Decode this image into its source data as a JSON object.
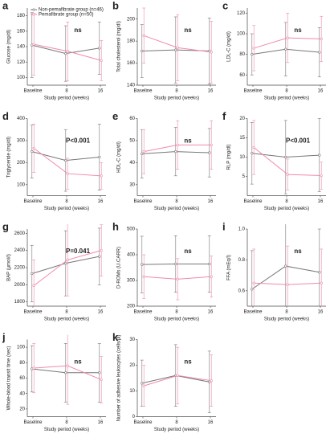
{
  "chart_data": [
    {
      "type": "line",
      "label": "a",
      "ylabel": "Glucose (mg/dl)",
      "xlabel": "Study period (weeks)",
      "categories": [
        "Baseline",
        "8",
        "16"
      ],
      "series": [
        {
          "name": "Non-pemafibrate group (n=46)",
          "color": "#777777",
          "values": [
            142,
            131,
            138
          ],
          "errors": [
            42,
            36,
            34
          ]
        },
        {
          "name": "Pemafibrate group (n=50)",
          "color": "#f08aa8",
          "values": [
            143,
            134,
            122
          ],
          "errors": [
            40,
            38,
            26
          ]
        }
      ],
      "ylim": [
        90,
        190
      ],
      "yticks": [
        100,
        120,
        140,
        160,
        180
      ],
      "annotation": "ns",
      "legend": "upper-left"
    },
    {
      "type": "line",
      "label": "b",
      "ylabel": "Total cholesterol (mg/dl)",
      "xlabel": "Study period (weeks)",
      "categories": [
        "Baseline",
        "8",
        "16"
      ],
      "series": [
        {
          "color": "#777777",
          "values": [
            171,
            172,
            171
          ],
          "errors": [
            24,
            30,
            30
          ]
        },
        {
          "color": "#f08aa8",
          "values": [
            185,
            174,
            170
          ],
          "errors": [
            25,
            30,
            28
          ]
        }
      ],
      "ylim": [
        140,
        210
      ],
      "yticks": [
        140,
        160,
        180,
        200
      ],
      "annotation": "ns"
    },
    {
      "type": "line",
      "label": "c",
      "ylabel": "LDL-C (mg/dl)",
      "xlabel": "Study period (weeks)",
      "categories": [
        "Baseline",
        "8",
        "16"
      ],
      "series": [
        {
          "color": "#777777",
          "values": [
            80,
            85,
            82
          ],
          "errors": [
            20,
            26,
            24
          ]
        },
        {
          "color": "#f08aa8",
          "values": [
            86,
            96,
            95
          ],
          "errors": [
            22,
            24,
            22
          ]
        }
      ],
      "ylim": [
        50,
        125
      ],
      "yticks": [
        60,
        80,
        100,
        120
      ],
      "annotation": "ns"
    },
    {
      "type": "line",
      "label": "d",
      "ylabel": "Triglyceride (mg/dl)",
      "xlabel": "Study period (weeks)",
      "categories": [
        "Baseline",
        "8",
        "16"
      ],
      "series": [
        {
          "color": "#777777",
          "values": [
            250,
            210,
            225
          ],
          "errors": [
            120,
            140,
            150
          ]
        },
        {
          "color": "#f08aa8",
          "values": [
            265,
            150,
            140
          ],
          "errors": [
            110,
            70,
            60
          ]
        }
      ],
      "ylim": [
        50,
        400
      ],
      "yticks": [
        100,
        200,
        300,
        400
      ],
      "annotation": "P<0.001"
    },
    {
      "type": "line",
      "label": "e",
      "ylabel": "HDL-C (mg/dl)",
      "xlabel": "Study period (weeks)",
      "categories": [
        "Baseline",
        "8",
        "16"
      ],
      "series": [
        {
          "color": "#777777",
          "values": [
            44,
            45,
            44.5
          ],
          "errors": [
            11,
            11,
            11
          ]
        },
        {
          "color": "#f08aa8",
          "values": [
            45,
            48,
            48
          ],
          "errors": [
            10,
            11,
            11
          ]
        }
      ],
      "ylim": [
        25,
        60
      ],
      "yticks": [
        30,
        40,
        50,
        60
      ],
      "annotation": "ns"
    },
    {
      "type": "line",
      "label": "f",
      "ylabel": "RLP (mg/dl)",
      "xlabel": "Study period (weeks)",
      "categories": [
        "Baseline",
        "8",
        "16"
      ],
      "series": [
        {
          "color": "#777777",
          "values": [
            11,
            10,
            10.5
          ],
          "errors": [
            8,
            9.5,
            9.5
          ]
        },
        {
          "color": "#f08aa8",
          "values": [
            12.5,
            5.5,
            5.2
          ],
          "errors": [
            7,
            4,
            3.5
          ]
        }
      ],
      "ylim": [
        0,
        20
      ],
      "yticks": [
        5,
        10,
        15,
        20
      ],
      "annotation": "P<0.001"
    },
    {
      "type": "line",
      "label": "g",
      "ylabel": "BAP (μmol/l)",
      "xlabel": "Study period (weeks)",
      "categories": [
        "Baseline",
        "8",
        "16"
      ],
      "series": [
        {
          "color": "#777777",
          "values": [
            2130,
            2250,
            2330
          ],
          "errors": [
            330,
            380,
            330
          ]
        },
        {
          "color": "#f08aa8",
          "values": [
            1990,
            2290,
            2400
          ],
          "errors": [
            300,
            420,
            300
          ]
        }
      ],
      "ylim": [
        1750,
        2650
      ],
      "yticks": [
        1800,
        2000,
        2200,
        2400,
        2600
      ],
      "annotation": "P=0.041"
    },
    {
      "type": "line",
      "label": "h",
      "ylabel": "D-ROMs (U.CARR)",
      "xlabel": "Study period (weeks)",
      "categories": [
        "Baseline",
        "8",
        "16"
      ],
      "series": [
        {
          "color": "#777777",
          "values": [
            362,
            364,
            364
          ],
          "errors": [
            110,
            110,
            110
          ]
        },
        {
          "color": "#f08aa8",
          "values": [
            315,
            305,
            315
          ],
          "errors": [
            85,
            80,
            80
          ]
        }
      ],
      "ylim": [
        200,
        500
      ],
      "yticks": [
        200,
        300,
        400,
        500
      ],
      "annotation": "ns"
    },
    {
      "type": "line",
      "label": "i",
      "ylabel": "FFA (mEq/l)",
      "xlabel": "Study period (weeks)",
      "categories": [
        "Baseline",
        "8",
        "16"
      ],
      "series": [
        {
          "color": "#777777",
          "values": [
            0.61,
            0.76,
            0.72
          ],
          "errors": [
            0.25,
            0.3,
            0.28
          ]
        },
        {
          "color": "#f08aa8",
          "values": [
            0.65,
            0.64,
            0.65
          ],
          "errors": [
            0.22,
            0.25,
            0.22
          ]
        }
      ],
      "ylim": [
        0.5,
        1.0
      ],
      "yticks": [
        0.6,
        0.8,
        {
          "value": 1,
          "label": "1.0"
        }
      ],
      "annotation": "ns"
    },
    {
      "type": "line",
      "label": "j",
      "ylabel": "Whole-blood transit time (sec)",
      "xlabel": "Study period (weeks)",
      "categories": [
        "Baseline",
        "8",
        "16"
      ],
      "series": [
        {
          "color": "#777777",
          "values": [
            72,
            67,
            67
          ],
          "errors": [
            30,
            38,
            38
          ]
        },
        {
          "color": "#f08aa8",
          "values": [
            73,
            76,
            58
          ],
          "errors": [
            32,
            50,
            30
          ]
        }
      ],
      "ylim": [
        10,
        110
      ],
      "yticks": [
        20,
        40,
        60,
        80,
        100
      ],
      "annotation": "ns"
    },
    {
      "type": "line",
      "label": "k",
      "ylabel": "Number of adhesive leukocytes (cells/μl)",
      "xlabel": "Study period (weeks)",
      "categories": [
        "Baseline",
        "8",
        "16"
      ],
      "series": [
        {
          "color": "#777777",
          "values": [
            13,
            16,
            13.5
          ],
          "errors": [
            9,
            12,
            12
          ]
        },
        {
          "color": "#f08aa8",
          "values": [
            12,
            16,
            14
          ],
          "errors": [
            8,
            11,
            10
          ]
        }
      ],
      "ylim": [
        0,
        30
      ],
      "yticks": [
        0,
        10,
        20,
        30
      ],
      "annotation": "ns"
    }
  ]
}
